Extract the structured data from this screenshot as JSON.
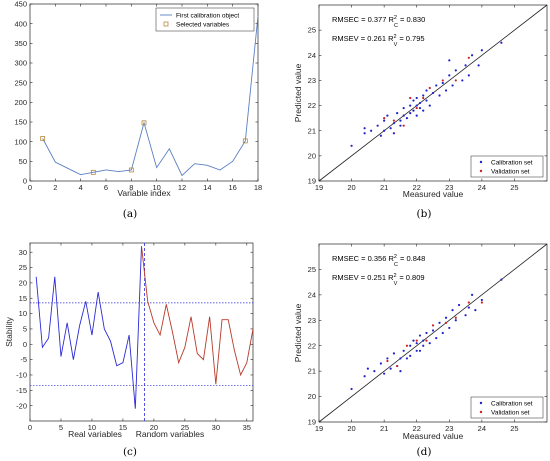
{
  "chart_data": [
    {
      "id": "a",
      "type": "line",
      "panel_label": "(a)",
      "xlabel": "Variable index",
      "ylabel": "",
      "xlim": [
        0,
        18
      ],
      "ylim": [
        0,
        450
      ],
      "xticks": [
        0,
        2,
        4,
        6,
        8,
        10,
        12,
        14,
        16,
        18
      ],
      "yticks": [
        0,
        50,
        100,
        150,
        200,
        250,
        300,
        350,
        400,
        450
      ],
      "series": [
        {
          "name": "First calibration object",
          "color": "#5b7fc4",
          "x": [
            1,
            2,
            3,
            4,
            5,
            6,
            7,
            8,
            9,
            10,
            11,
            12,
            13,
            14,
            15,
            16,
            17,
            18
          ],
          "y": [
            108,
            48,
            32,
            16,
            22,
            28,
            24,
            28,
            148,
            34,
            82,
            14,
            44,
            40,
            28,
            50,
            102,
            420
          ]
        }
      ],
      "markers": {
        "name": "Selected variables",
        "color": "#b58a3c",
        "x": [
          1,
          5,
          8,
          9,
          17
        ],
        "y": [
          108,
          22,
          28,
          148,
          102
        ]
      },
      "legend_position": "top-right"
    },
    {
      "id": "b",
      "type": "scatter",
      "panel_label": "(b)",
      "xlabel": "Measured value",
      "ylabel": "Predicted value",
      "xlim": [
        19,
        26
      ],
      "ylim": [
        19,
        26
      ],
      "xticks": [
        19,
        20,
        21,
        22,
        23,
        24,
        25
      ],
      "yticks": [
        19,
        20,
        21,
        22,
        23,
        24,
        25
      ],
      "annotations": [
        {
          "text": "RMSEC = 0.377  R",
          "sub": "C",
          "sup": "2",
          "tail": " = 0.830"
        },
        {
          "text": "RMSEV = 0.261  R",
          "sub": "V",
          "sup": "2",
          "tail": " = 0.795"
        }
      ],
      "series": [
        {
          "name": "Calibration set",
          "color": "#2222cc",
          "points": [
            [
              20.0,
              20.4
            ],
            [
              20.4,
              20.9
            ],
            [
              20.4,
              21.1
            ],
            [
              20.6,
              21.0
            ],
            [
              20.8,
              21.2
            ],
            [
              20.9,
              20.8
            ],
            [
              21.0,
              21.4
            ],
            [
              21.0,
              21.0
            ],
            [
              21.1,
              21.6
            ],
            [
              21.2,
              21.1
            ],
            [
              21.3,
              21.3
            ],
            [
              21.3,
              20.9
            ],
            [
              21.4,
              21.7
            ],
            [
              21.5,
              21.4
            ],
            [
              21.5,
              21.2
            ],
            [
              21.6,
              21.6
            ],
            [
              21.6,
              21.9
            ],
            [
              21.7,
              21.5
            ],
            [
              21.8,
              22.0
            ],
            [
              21.8,
              21.7
            ],
            [
              21.9,
              22.2
            ],
            [
              21.9,
              21.8
            ],
            [
              22.0,
              22.0
            ],
            [
              22.0,
              22.3
            ],
            [
              22.0,
              21.6
            ],
            [
              22.1,
              22.1
            ],
            [
              22.1,
              21.9
            ],
            [
              22.2,
              22.4
            ],
            [
              22.2,
              21.8
            ],
            [
              22.3,
              22.2
            ],
            [
              22.3,
              22.6
            ],
            [
              22.4,
              22.0
            ],
            [
              22.5,
              22.5
            ],
            [
              22.6,
              22.8
            ],
            [
              22.7,
              22.4
            ],
            [
              22.8,
              22.9
            ],
            [
              22.9,
              22.6
            ],
            [
              23.0,
              23.2
            ],
            [
              23.0,
              23.8
            ],
            [
              23.1,
              22.8
            ],
            [
              23.2,
              23.4
            ],
            [
              23.4,
              23.0
            ],
            [
              23.5,
              23.6
            ],
            [
              23.6,
              23.2
            ],
            [
              23.7,
              24.0
            ],
            [
              23.9,
              23.6
            ],
            [
              24.0,
              24.2
            ],
            [
              24.6,
              24.5
            ]
          ]
        },
        {
          "name": "Validation set",
          "color": "#cc2222",
          "points": [
            [
              21.0,
              21.5
            ],
            [
              21.3,
              21.4
            ],
            [
              21.6,
              21.2
            ],
            [
              21.8,
              22.3
            ],
            [
              22.0,
              21.9
            ],
            [
              22.2,
              22.3
            ],
            [
              22.4,
              22.7
            ],
            [
              22.8,
              23.0
            ],
            [
              23.2,
              23.0
            ],
            [
              23.6,
              23.9
            ]
          ]
        }
      ],
      "legend_position": "bottom-right"
    },
    {
      "id": "c",
      "type": "line",
      "panel_label": "(c)",
      "xlabel": "",
      "ylabel": "Stability",
      "xlim": [
        0,
        36
      ],
      "ylim": [
        -25,
        33
      ],
      "xticks": [
        0,
        5,
        10,
        15,
        20,
        25,
        30,
        35
      ],
      "yticks": [
        -20,
        -15,
        -10,
        -5,
        0,
        5,
        10,
        15,
        20,
        25,
        30
      ],
      "group_labels": [
        "Real variables",
        "Random variables"
      ],
      "threshold": 13.5,
      "divider_x": 18.5,
      "series": [
        {
          "name": "",
          "color": "#2b2bd6",
          "x": [
            1,
            2,
            3,
            4,
            5,
            6,
            7,
            8,
            9,
            10,
            11,
            12,
            13,
            14,
            15,
            16,
            17,
            18
          ],
          "y": [
            22,
            -1,
            2,
            22,
            -4,
            7,
            -5,
            6,
            14,
            3,
            17,
            5,
            1,
            -7,
            -6,
            3,
            -21,
            32
          ]
        },
        {
          "name": "",
          "color": "#b83a2a",
          "x": [
            19,
            20,
            21,
            22,
            23,
            24,
            25,
            26,
            27,
            28,
            29,
            30,
            31,
            32,
            33,
            34,
            35,
            36
          ],
          "y": [
            14,
            7,
            3,
            13,
            4,
            -6,
            -1,
            9,
            -3,
            -5,
            9,
            -13,
            8,
            8,
            -2,
            -10,
            -6,
            5
          ]
        }
      ]
    },
    {
      "id": "d",
      "type": "scatter",
      "panel_label": "(d)",
      "xlabel": "Measured value",
      "ylabel": "Predicted value",
      "xlim": [
        19,
        26
      ],
      "ylim": [
        19,
        26
      ],
      "xticks": [
        19,
        20,
        21,
        22,
        23,
        24,
        25
      ],
      "yticks": [
        19,
        20,
        21,
        22,
        23,
        24,
        25
      ],
      "annotations": [
        {
          "text": "RMSEC = 0.356  R",
          "sub": "C",
          "sup": "2",
          "tail": " = 0.848"
        },
        {
          "text": "RMSEV = 0.251  R",
          "sub": "V",
          "sup": "2",
          "tail": " = 0.809"
        }
      ],
      "series": [
        {
          "name": "Calibration set",
          "color": "#2222cc",
          "points": [
            [
              20.0,
              20.3
            ],
            [
              20.4,
              20.8
            ],
            [
              20.5,
              21.1
            ],
            [
              20.7,
              21.0
            ],
            [
              20.9,
              21.3
            ],
            [
              21.0,
              20.9
            ],
            [
              21.1,
              21.5
            ],
            [
              21.2,
              21.1
            ],
            [
              21.3,
              21.7
            ],
            [
              21.4,
              21.2
            ],
            [
              21.5,
              21.5
            ],
            [
              21.5,
              21.0
            ],
            [
              21.6,
              21.8
            ],
            [
              21.7,
              21.5
            ],
            [
              21.8,
              22.0
            ],
            [
              21.8,
              21.6
            ],
            [
              21.9,
              22.2
            ],
            [
              22.0,
              21.8
            ],
            [
              22.0,
              22.1
            ],
            [
              22.1,
              22.4
            ],
            [
              22.1,
              21.8
            ],
            [
              22.2,
              22.2
            ],
            [
              22.2,
              22.0
            ],
            [
              22.3,
              22.5
            ],
            [
              22.4,
              22.1
            ],
            [
              22.5,
              22.6
            ],
            [
              22.6,
              22.3
            ],
            [
              22.7,
              22.9
            ],
            [
              22.8,
              22.5
            ],
            [
              22.9,
              23.1
            ],
            [
              23.0,
              22.7
            ],
            [
              23.1,
              23.4
            ],
            [
              23.2,
              23.0
            ],
            [
              23.3,
              23.6
            ],
            [
              23.5,
              23.2
            ],
            [
              23.6,
              23.5
            ],
            [
              23.7,
              24.0
            ],
            [
              23.8,
              23.4
            ],
            [
              24.0,
              23.8
            ],
            [
              24.6,
              24.6
            ]
          ]
        },
        {
          "name": "Validation set",
          "color": "#cc2222",
          "points": [
            [
              21.1,
              21.4
            ],
            [
              21.4,
              21.2
            ],
            [
              21.7,
              22.0
            ],
            [
              22.0,
              22.2
            ],
            [
              22.3,
              22.2
            ],
            [
              22.5,
              22.8
            ],
            [
              22.9,
              22.9
            ],
            [
              23.2,
              23.1
            ],
            [
              23.6,
              23.7
            ],
            [
              24.0,
              23.7
            ]
          ]
        }
      ],
      "legend_position": "bottom-right"
    }
  ]
}
